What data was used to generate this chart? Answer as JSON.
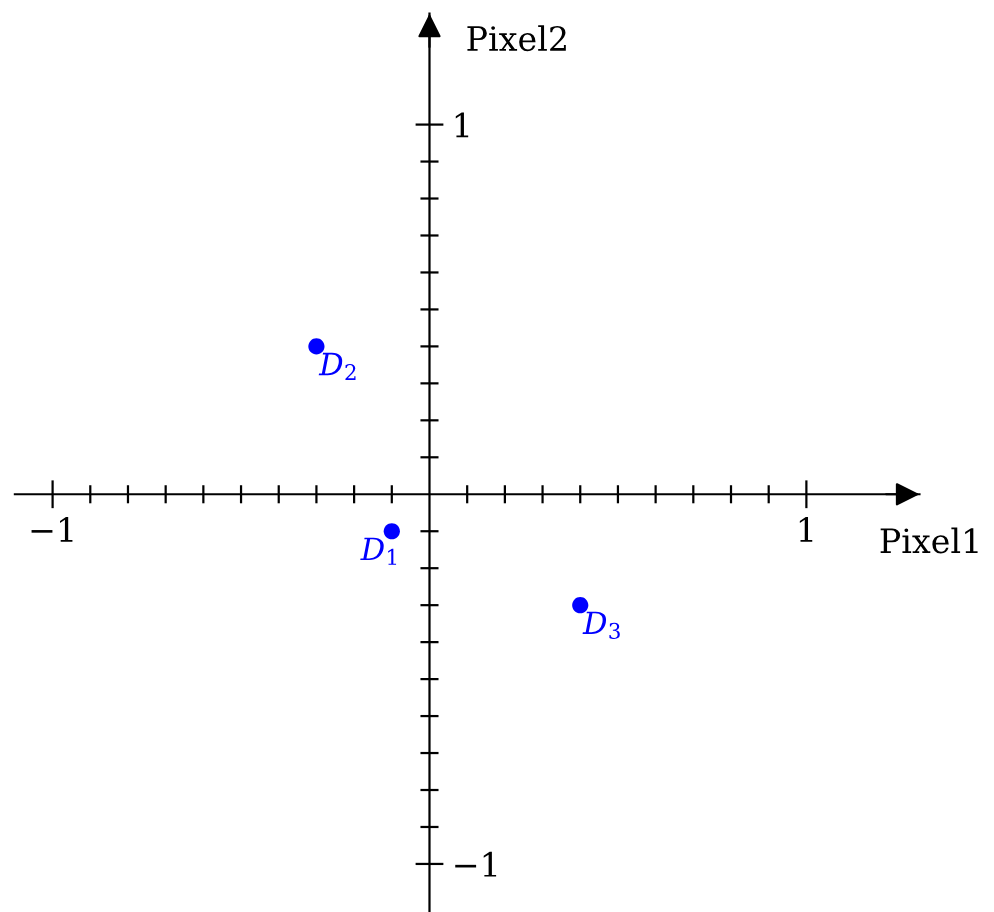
{
  "chart_data": {
    "type": "scatter",
    "xlabel": "Pixel1",
    "ylabel": "Pixel2",
    "xlim": [
      -1.1,
      1.3
    ],
    "ylim": [
      -1.13,
      1.3
    ],
    "xticks": [
      {
        "value": -1,
        "label": "−1"
      },
      {
        "value": -0.9,
        "label": null
      },
      {
        "value": -0.8,
        "label": null
      },
      {
        "value": -0.7,
        "label": null
      },
      {
        "value": -0.6,
        "label": null
      },
      {
        "value": -0.5,
        "label": null
      },
      {
        "value": -0.4,
        "label": null
      },
      {
        "value": -0.3,
        "label": null
      },
      {
        "value": -0.2,
        "label": null
      },
      {
        "value": -0.1,
        "label": null
      },
      {
        "value": 0.1,
        "label": null
      },
      {
        "value": 0.2,
        "label": null
      },
      {
        "value": 0.3,
        "label": null
      },
      {
        "value": 0.4,
        "label": null
      },
      {
        "value": 0.5,
        "label": null
      },
      {
        "value": 0.6,
        "label": null
      },
      {
        "value": 0.7,
        "label": null
      },
      {
        "value": 0.8,
        "label": null
      },
      {
        "value": 0.9,
        "label": null
      },
      1
    ],
    "yticks": [
      {
        "value": -1,
        "label": "−1"
      },
      {
        "value": -0.9,
        "label": null
      },
      {
        "value": -0.8,
        "label": null
      },
      {
        "value": -0.7,
        "label": null
      },
      {
        "value": -0.6,
        "label": null
      },
      {
        "value": -0.5,
        "label": null
      },
      {
        "value": -0.4,
        "label": null
      },
      {
        "value": -0.3,
        "label": null
      },
      {
        "value": -0.2,
        "label": null
      },
      {
        "value": -0.1,
        "label": null
      },
      {
        "value": 0.1,
        "label": null
      },
      {
        "value": 0.2,
        "label": null
      },
      {
        "value": 0.3,
        "label": null
      },
      {
        "value": 0.4,
        "label": null
      },
      {
        "value": 0.5,
        "label": null
      },
      {
        "value": 0.6,
        "label": null
      },
      {
        "value": 0.7,
        "label": null
      },
      {
        "value": 0.8,
        "label": null
      },
      {
        "value": 0.9,
        "label": null
      },
      1
    ],
    "x": [
      -0.1,
      -0.3,
      0.4
    ],
    "series": [
      {
        "color": "#0000ff",
        "values": [
          -0.1,
          0.4,
          -0.3
        ]
      }
    ],
    "marker": "circle",
    "annotations": [
      {
        "text": "D$_{1}$",
        "x": -0.1,
        "y": -0.1
      },
      {
        "text": "D$_{2}$",
        "x": -0.3,
        "y": 0.4
      },
      {
        "text": "D$_{3}$",
        "x": 0.4,
        "y": -0.3
      }
    ]
  }
}
